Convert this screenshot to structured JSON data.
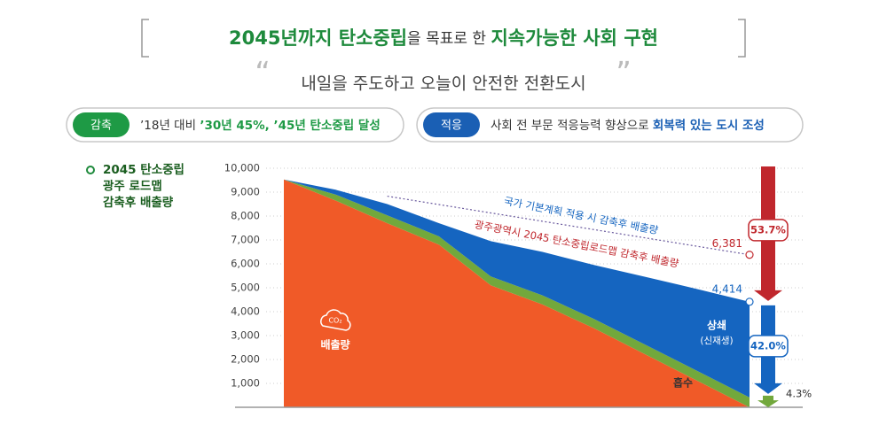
{
  "header": {
    "title_parts": [
      "2045년까지 탄소중립",
      "을 목표로 한 ",
      "지속가능한 사회 구현"
    ],
    "subtitle": "내일을 주도하고 오늘이 안전한 전환도시"
  },
  "pills": [
    {
      "badge": "감축",
      "text": "’18년 대비 ",
      "emphasis": "’30년 45%, ’45년 탄소중립 달성",
      "color": "#1e9a45"
    },
    {
      "badge": "적응",
      "text": "사회 전 부문 적응능력 향상으로 ",
      "emphasis": "회복력 있는 도시 조성",
      "color": "#1a5fb4"
    }
  ],
  "chart_data": {
    "type": "stacked_area",
    "legend_title": [
      "2045 탄소중립",
      "광주 로드맵",
      "감축후 배출량"
    ],
    "categories": [
      null,
      null,
      null,
      null,
      null,
      null,
      null,
      null,
      null,
      null
    ],
    "ylim": [
      0,
      10000
    ],
    "yticks": [
      {
        "value": 1000,
        "label": "1,000"
      },
      {
        "value": 2000,
        "label": "2,000"
      },
      {
        "value": 3000,
        "label": "3,000"
      },
      {
        "value": 4000,
        "label": "4,000"
      },
      {
        "value": 5000,
        "label": "5,000"
      },
      {
        "value": 6000,
        "label": "6,000"
      },
      {
        "value": 7000,
        "label": "7,000"
      },
      {
        "value": 8000,
        "label": "8,000"
      },
      {
        "value": 9000,
        "label": "9,000"
      },
      {
        "value": 10000,
        "label": "10,000"
      }
    ],
    "grid": true,
    "series": [
      {
        "name": "배출량",
        "icon": "CO₂",
        "color": "#f05a28",
        "values": [
          9530,
          8650,
          7700,
          6800,
          5100,
          4300,
          3300,
          2200,
          1100,
          0
        ]
      },
      {
        "name": "흡수",
        "color": "#72a83c",
        "values": [
          0,
          250,
          330,
          350,
          370,
          380,
          390,
          400,
          410,
          410
        ]
      },
      {
        "name": "상쇄",
        "sublabel": "(신재생)",
        "color": "#1565c0",
        "values": [
          0,
          200,
          470,
          550,
          1480,
          1820,
          2260,
          2850,
          3430,
          4004
        ]
      }
    ],
    "reference_line": {
      "name": "국가 기본계획 적용 시 감축후 배출량",
      "color": "#6a5a9e",
      "values": [
        null,
        null,
        8830,
        8480,
        8130,
        7781,
        7431,
        7081,
        6731,
        6381
      ],
      "value_labels": [
        null,
        null,
        null,
        null,
        null,
        null,
        null,
        null,
        null,
        "6,381"
      ]
    },
    "total_name": "광주광역시 2045 탄소중립로드맵 감축후 배출량",
    "total_label": {
      "value": 4414,
      "label": "4,414"
    },
    "shares": [
      {
        "value": 53.7,
        "label": "53.7%",
        "color": "#c0272d"
      },
      {
        "value": 42.0,
        "label": "42.0%",
        "color": "#1565c0"
      },
      {
        "value": 4.3,
        "label": "4.3%",
        "color": "#72a83c"
      }
    ]
  }
}
